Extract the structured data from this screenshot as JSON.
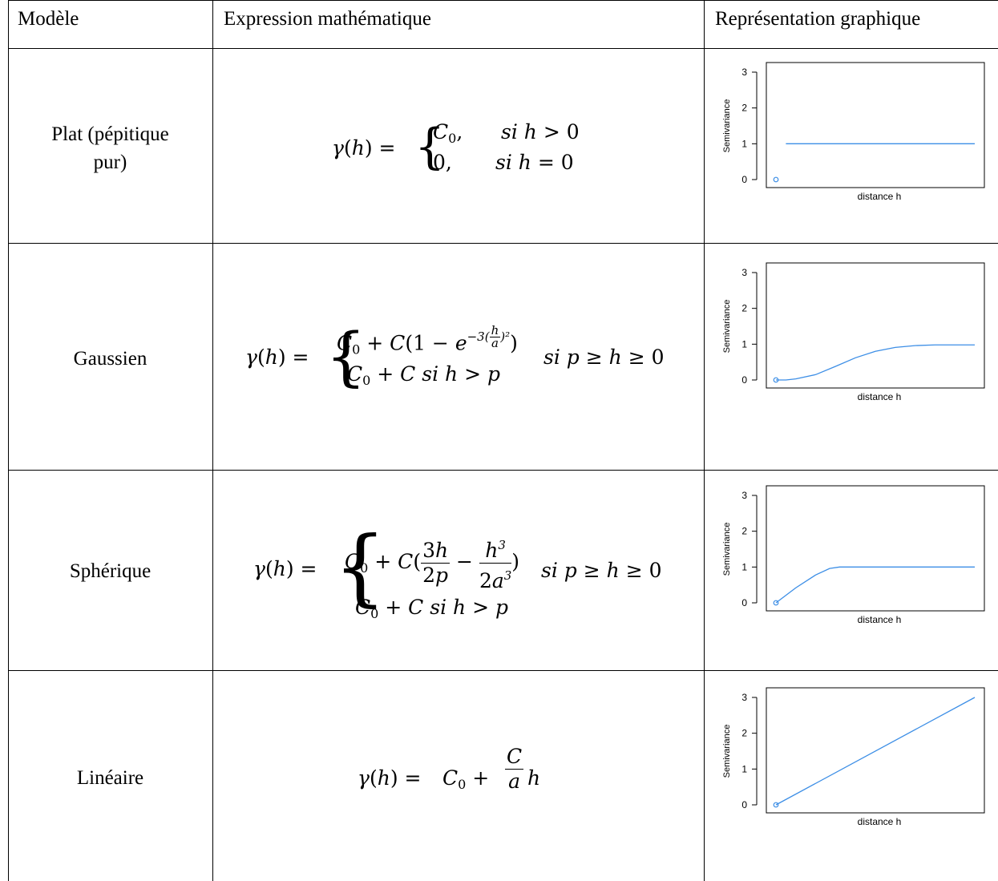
{
  "table": {
    "headers": [
      "Modèle",
      "Expression mathématique",
      "Représentation graphique"
    ],
    "rows": [
      {
        "model_line1": "Plat (pépitique",
        "model_line2": "pur)"
      },
      {
        "model_line1": "Gaussien"
      },
      {
        "model_line1": "Sphérique"
      },
      {
        "model_line1": "Linéaire"
      }
    ]
  },
  "plot_labels": {
    "ylabel": "Semivariance",
    "xlabel": "distance h",
    "yticks": [
      "0",
      "1",
      "2",
      "3"
    ]
  },
  "colors": {
    "curve": "#3c8ee6",
    "axis": "#000000",
    "border": "#000000"
  },
  "chart_data": [
    {
      "type": "scatter+line",
      "model": "Plat (pépitique pur)",
      "ylim": [
        0,
        3
      ],
      "ylabel": "Semivariance",
      "xlabel": "distance h",
      "series": [
        {
          "points": [
            [
              0,
              0
            ]
          ]
        },
        {
          "line": [
            [
              0.05,
              1
            ],
            [
              1,
              1
            ]
          ]
        }
      ]
    },
    {
      "type": "line",
      "model": "Gaussien",
      "ylim": [
        0,
        3
      ],
      "ylabel": "Semivariance",
      "xlabel": "distance h",
      "series": [
        {
          "points": [
            [
              0,
              0
            ]
          ]
        },
        {
          "line": [
            [
              0,
              0
            ],
            [
              0.05,
              0.0
            ],
            [
              0.1,
              0.03
            ],
            [
              0.2,
              0.15
            ],
            [
              0.3,
              0.38
            ],
            [
              0.4,
              0.62
            ],
            [
              0.5,
              0.8
            ],
            [
              0.6,
              0.91
            ],
            [
              0.7,
              0.96
            ],
            [
              0.8,
              0.98
            ],
            [
              1,
              0.98
            ]
          ]
        }
      ]
    },
    {
      "type": "line",
      "model": "Sphérique",
      "ylim": [
        0,
        3
      ],
      "ylabel": "Semivariance",
      "xlabel": "distance h",
      "series": [
        {
          "points": [
            [
              0,
              0
            ]
          ]
        },
        {
          "line": [
            [
              0,
              0
            ],
            [
              0.1,
              0.42
            ],
            [
              0.2,
              0.78
            ],
            [
              0.27,
              0.96
            ],
            [
              0.32,
              1
            ],
            [
              1,
              1
            ]
          ]
        }
      ]
    },
    {
      "type": "line",
      "model": "Linéaire",
      "ylim": [
        0,
        3
      ],
      "ylabel": "Semivariance",
      "xlabel": "distance h",
      "series": [
        {
          "points": [
            [
              0,
              0
            ]
          ]
        },
        {
          "line": [
            [
              0,
              0
            ],
            [
              1,
              3
            ]
          ]
        }
      ]
    }
  ]
}
